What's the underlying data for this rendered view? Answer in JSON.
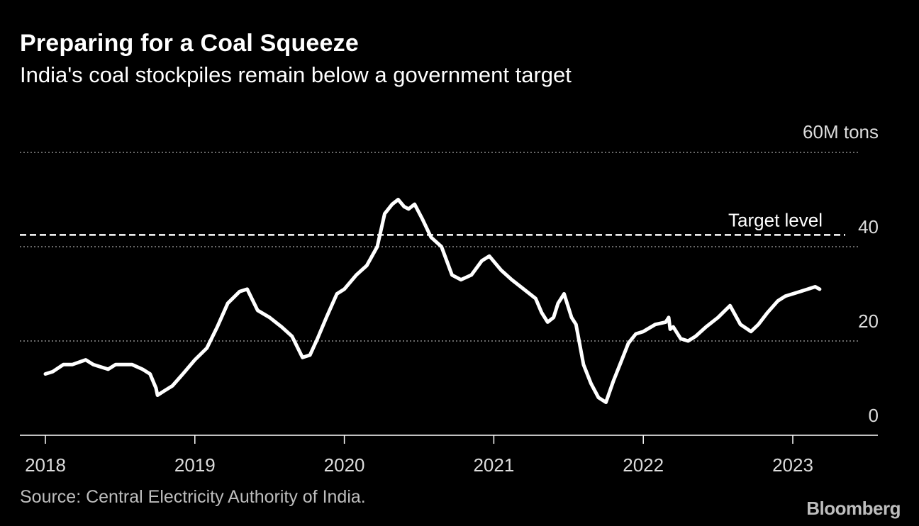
{
  "chart_data": {
    "type": "line",
    "title": "Preparing for a Coal Squeeze",
    "subtitle": "India's coal stockpiles remain below a government target",
    "ylabel": "60M tons",
    "ylim": [
      0,
      60
    ],
    "y_ticks": [
      {
        "value": 0,
        "label": "0"
      },
      {
        "value": 20,
        "label": "20"
      },
      {
        "value": 40,
        "label": "40"
      },
      {
        "value": 60,
        "label": "60M tons"
      }
    ],
    "x_ticks": [
      {
        "value": 2018,
        "label": "2018"
      },
      {
        "value": 2019,
        "label": "2019"
      },
      {
        "value": 2020,
        "label": "2020"
      },
      {
        "value": 2021,
        "label": "2021"
      },
      {
        "value": 2022,
        "label": "2022"
      },
      {
        "value": 2023,
        "label": "2023"
      }
    ],
    "xlim": [
      2017.83,
      2023.57
    ],
    "grid": true,
    "target": {
      "value": 42.5,
      "label": "Target level"
    },
    "series": [
      {
        "name": "Coal stockpiles",
        "x": [
          2018.0,
          2018.05,
          2018.12,
          2018.18,
          2018.27,
          2018.32,
          2018.42,
          2018.47,
          2018.58,
          2018.65,
          2018.7,
          2018.74,
          2018.75,
          2018.8,
          2018.85,
          2018.92,
          2019.0,
          2019.08,
          2019.15,
          2019.22,
          2019.3,
          2019.35,
          2019.42,
          2019.5,
          2019.58,
          2019.65,
          2019.72,
          2019.77,
          2019.82,
          2019.88,
          2019.95,
          2020.0,
          2020.08,
          2020.15,
          2020.22,
          2020.27,
          2020.32,
          2020.36,
          2020.4,
          2020.43,
          2020.47,
          2020.52,
          2020.58,
          2020.65,
          2020.72,
          2020.78,
          2020.85,
          2020.92,
          2020.97,
          2021.05,
          2021.12,
          2021.2,
          2021.28,
          2021.32,
          2021.36,
          2021.4,
          2021.43,
          2021.47,
          2021.52,
          2021.55,
          2021.6,
          2021.65,
          2021.7,
          2021.75,
          2021.8,
          2021.85,
          2021.9,
          2021.95,
          2022.0,
          2022.08,
          2022.15,
          2022.17,
          2022.18,
          2022.2,
          2022.25,
          2022.3,
          2022.35,
          2022.42,
          2022.5,
          2022.58,
          2022.65,
          2022.72,
          2022.77,
          2022.83,
          2022.9,
          2022.95,
          2023.0,
          2023.05,
          2023.1,
          2023.15,
          2023.18
        ],
        "values": [
          13,
          13.5,
          15,
          15,
          16,
          15,
          14,
          15,
          15,
          14,
          13,
          10,
          8.5,
          9.5,
          10.5,
          13,
          16,
          18.5,
          23,
          28,
          30.5,
          31,
          26.5,
          25,
          23,
          21,
          16.5,
          17,
          20.5,
          25,
          30,
          31,
          34,
          36,
          40,
          47,
          49,
          50,
          48.5,
          48,
          49,
          46,
          42,
          40,
          34,
          33,
          34,
          37,
          38,
          35,
          33,
          31,
          29,
          26,
          24,
          25,
          28,
          30,
          25,
          23.5,
          15,
          11,
          8,
          7,
          11.5,
          15.5,
          19.5,
          21.5,
          22,
          23.5,
          24,
          25,
          22.5,
          23,
          20.5,
          20,
          21,
          23,
          25,
          27.5,
          23.5,
          22,
          23.5,
          26,
          28.5,
          29.5,
          30,
          30.5,
          31,
          31.5,
          31
        ]
      }
    ],
    "source": "Source: Central Electricity Authority of India.",
    "logo": "Bloomberg"
  }
}
